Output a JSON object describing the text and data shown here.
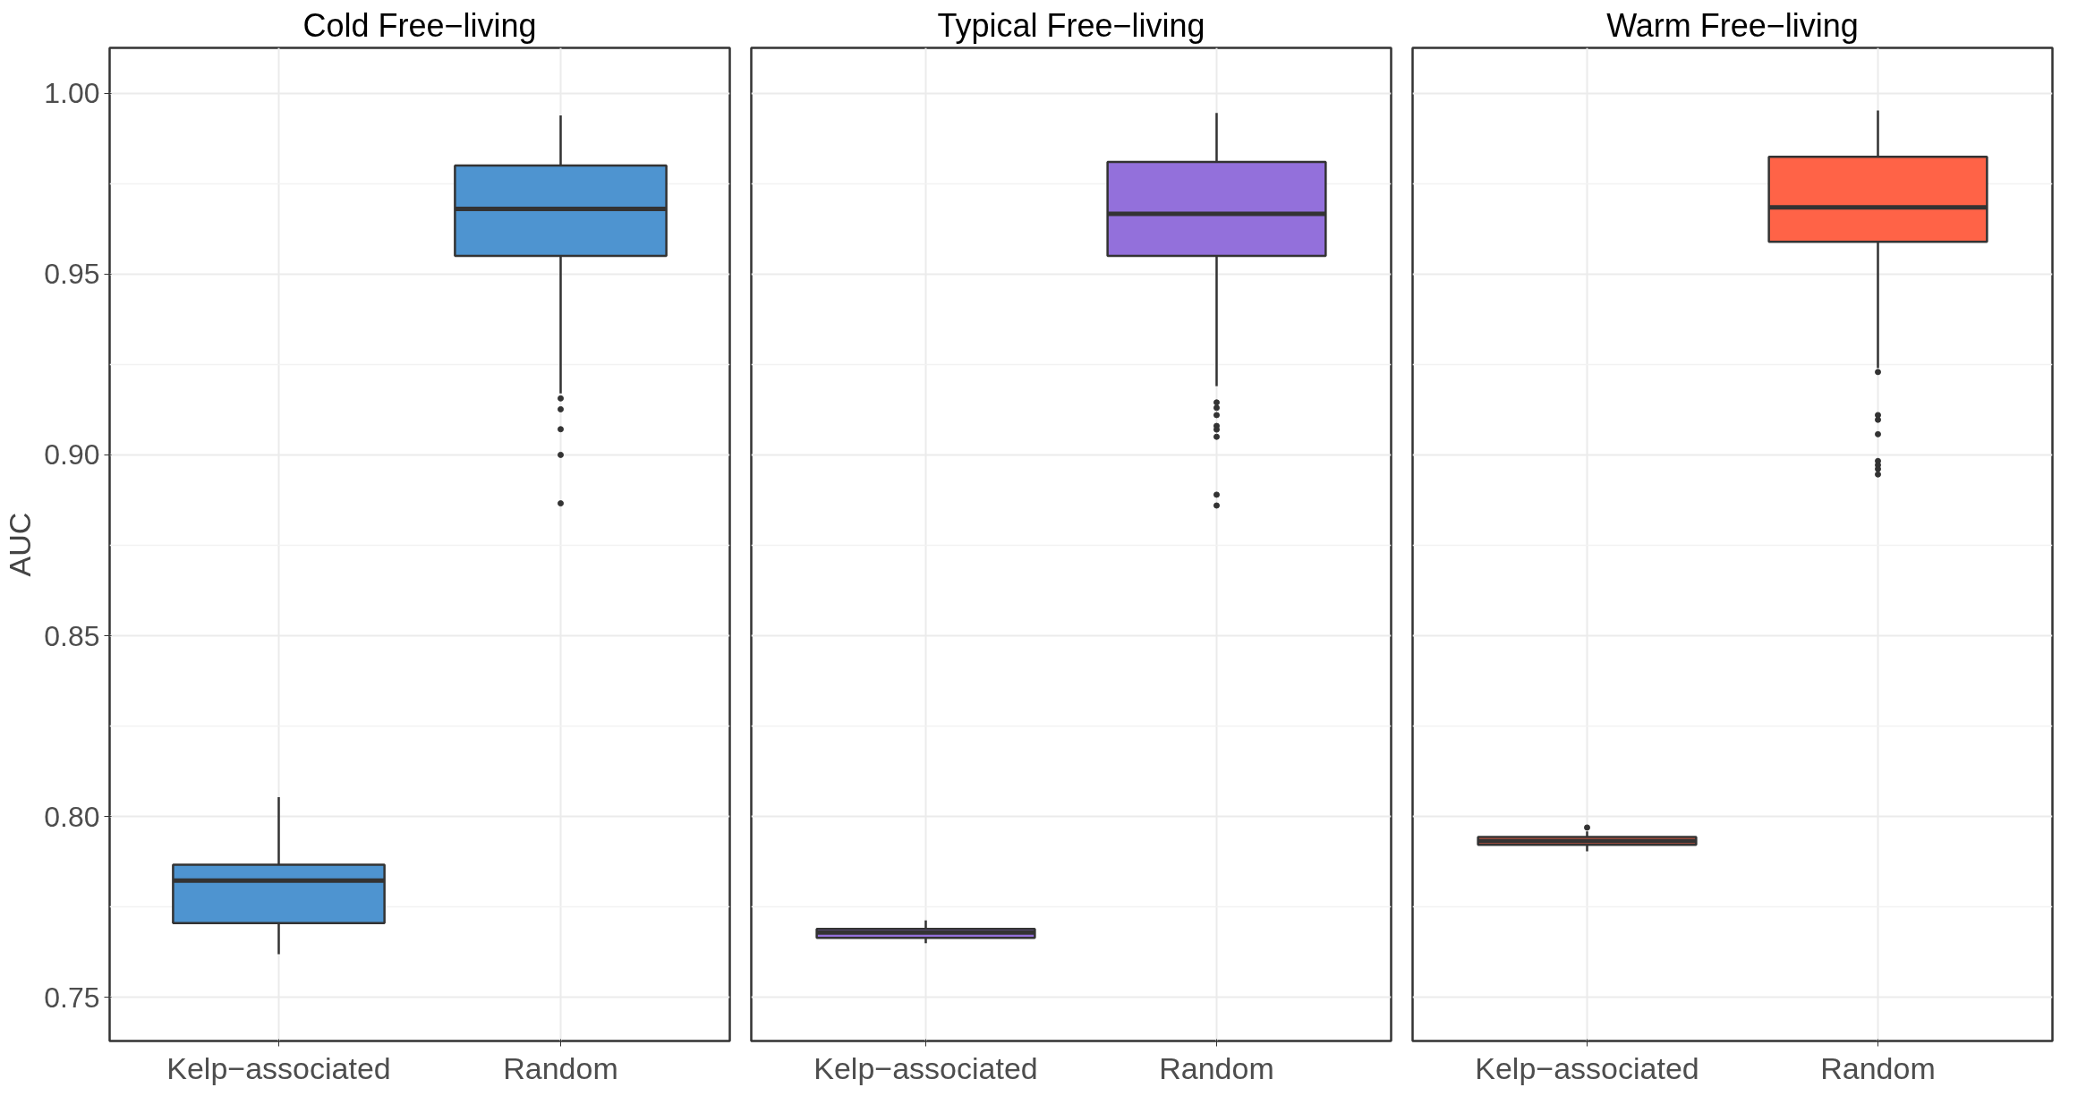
{
  "chart_data": [
    {
      "type": "box",
      "title": "Cold Free−living",
      "ylabel": "AUC",
      "categories": [
        "Kelp−associated",
        "Random"
      ],
      "ylim": [
        0.738,
        1.0125
      ],
      "yticks": [
        {
          "value": 0.75,
          "label": "0.75"
        },
        {
          "value": 0.8,
          "label": "0.80"
        },
        {
          "value": 0.85,
          "label": "0.85"
        },
        {
          "value": 0.9,
          "label": "0.90"
        },
        {
          "value": 0.95,
          "label": "0.95"
        },
        {
          "value": 1.0,
          "label": "1.00"
        }
      ],
      "grid": true,
      "series": [
        {
          "color": "#4e94d0",
          "boxes": [
            {
              "low": 0.762,
              "q1": 0.7706,
              "median": 0.7823,
              "q3": 0.7867,
              "high": 0.8054
            },
            {
              "low": 0.917,
              "q1": 0.955,
              "median": 0.968,
              "q3": 0.98,
              "high": 0.9938,
              "outliers": [
                0.9156,
                0.9126,
                0.9071,
                0.9,
                0.8866
              ]
            }
          ]
        }
      ]
    },
    {
      "type": "box",
      "title": "Typical Free−living",
      "categories": [
        "Kelp−associated",
        "Random"
      ],
      "ylim": [
        0.738,
        1.0125
      ],
      "yticks": [
        0.75,
        0.8,
        0.85,
        0.9,
        0.95,
        1.0
      ],
      "grid": true,
      "tick_labels": "x",
      "series": [
        {
          "color": "#9370db",
          "boxes": [
            {
              "low": 0.765,
              "q1": 0.7665,
              "median": 0.768,
              "q3": 0.769,
              "high": 0.7713
            },
            {
              "low": 0.919,
              "q1": 0.955,
              "median": 0.9666,
              "q3": 0.981,
              "high": 0.9945,
              "outliers": [
                0.9145,
                0.913,
                0.911,
                0.908,
                0.907,
                0.905,
                0.889,
                0.886
              ]
            }
          ]
        }
      ]
    },
    {
      "type": "box",
      "title": "Warm Free−living",
      "categories": [
        "Kelp−associated",
        "Random"
      ],
      "ylim": [
        0.738,
        1.0125
      ],
      "yticks": [
        0.75,
        0.8,
        0.85,
        0.9,
        0.95,
        1.0
      ],
      "grid": true,
      "tick_labels": "x",
      "series": [
        {
          "color": "#ff6347",
          "boxes": [
            {
              "low": 0.7904,
              "q1": 0.7922,
              "median": 0.7933,
              "q3": 0.7944,
              "high": 0.7959,
              "outliers": [
                0.797
              ]
            },
            {
              "low": 0.924,
              "q1": 0.9589,
              "median": 0.9684,
              "q3": 0.9824,
              "high": 0.9952,
              "outliers": [
                0.9229,
                0.911,
                0.9097,
                0.9057,
                0.8983,
                0.8972,
                0.8961,
                0.8946
              ]
            }
          ]
        }
      ]
    }
  ]
}
